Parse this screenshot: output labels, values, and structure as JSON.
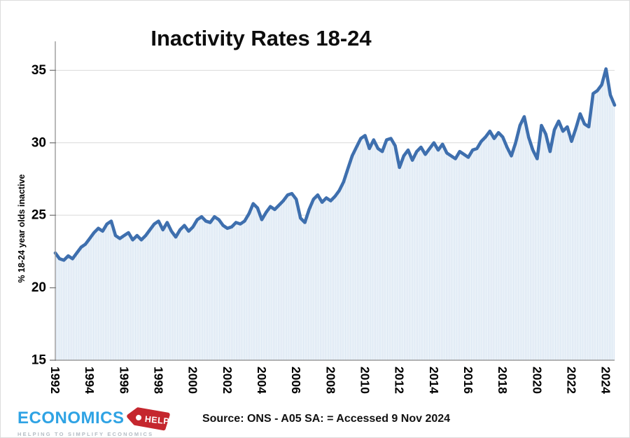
{
  "page": {
    "background": "#ffffff",
    "border_color": "#dcdcdc"
  },
  "chart": {
    "title": "Inactivity Rates 18-24",
    "y_axis_label": "% 18-24 year olds inactive"
  },
  "footer": {
    "source": "Source: ONS - A05 SA: = Accessed 9 Nov 2024",
    "logo": {
      "brand": "ECONOMICS",
      "tag": "HELP",
      "tagline": "HELPING TO SIMPLIFY ECONOMICS",
      "brand_color": "#2fa3e4",
      "tag_color": "#c5272e",
      "tagline_color": "#b4bcc4"
    }
  },
  "chart_data": {
    "type": "line",
    "title": "Inactivity Rates 18-24",
    "xlabel": "",
    "ylabel": "% 18-24 year olds inactive",
    "x_unit": "year (quarterly readings, 1992 Q1 - 2024 Q3)",
    "x_start": 1992.0,
    "x_step": 0.25,
    "values": [
      22.4,
      22.0,
      21.9,
      22.2,
      22.0,
      22.4,
      22.8,
      23.0,
      23.4,
      23.8,
      24.1,
      23.9,
      24.4,
      24.6,
      23.6,
      23.4,
      23.6,
      23.8,
      23.3,
      23.6,
      23.3,
      23.6,
      24.0,
      24.4,
      24.6,
      24.0,
      24.5,
      23.9,
      23.5,
      24.0,
      24.3,
      23.9,
      24.2,
      24.7,
      24.9,
      24.6,
      24.5,
      24.9,
      24.7,
      24.3,
      24.1,
      24.2,
      24.5,
      24.4,
      24.6,
      25.1,
      25.8,
      25.5,
      24.7,
      25.2,
      25.6,
      25.4,
      25.7,
      26.0,
      26.4,
      26.5,
      26.1,
      24.8,
      24.5,
      25.4,
      26.1,
      26.4,
      25.9,
      26.2,
      26.0,
      26.3,
      26.7,
      27.3,
      28.2,
      29.1,
      29.7,
      30.3,
      30.5,
      29.6,
      30.2,
      29.6,
      29.4,
      30.2,
      30.3,
      29.8,
      28.3,
      29.1,
      29.5,
      28.8,
      29.4,
      29.7,
      29.2,
      29.6,
      30.0,
      29.5,
      29.9,
      29.3,
      29.1,
      28.9,
      29.4,
      29.2,
      29.0,
      29.5,
      29.6,
      30.1,
      30.4,
      30.8,
      30.3,
      30.7,
      30.4,
      29.7,
      29.1,
      30.0,
      31.2,
      31.8,
      30.4,
      29.5,
      28.9,
      31.2,
      30.6,
      29.4,
      30.9,
      31.5,
      30.8,
      31.1,
      30.1,
      31.0,
      32.0,
      31.3,
      31.1,
      33.4,
      33.6,
      34.0,
      35.1,
      33.3,
      32.6
    ],
    "x_ticks": [
      1992,
      1994,
      1996,
      1998,
      2000,
      2002,
      2004,
      2006,
      2008,
      2010,
      2012,
      2014,
      2016,
      2018,
      2020,
      2022,
      2024
    ],
    "y_ticks": [
      15,
      20,
      25,
      30,
      35
    ],
    "xlim": [
      1992,
      2024.5
    ],
    "ylim": [
      15,
      37
    ],
    "grid": "horizontal",
    "legend": "none",
    "area_fill": true,
    "line_color": "#3e6fae",
    "fill_stripe_color": "#d7e3f1",
    "fill_bg_color": "#f3f8fc",
    "gridline_color": "#d9d9d9",
    "axis_color": "#9b9b9b",
    "tick_color": "#808080"
  }
}
